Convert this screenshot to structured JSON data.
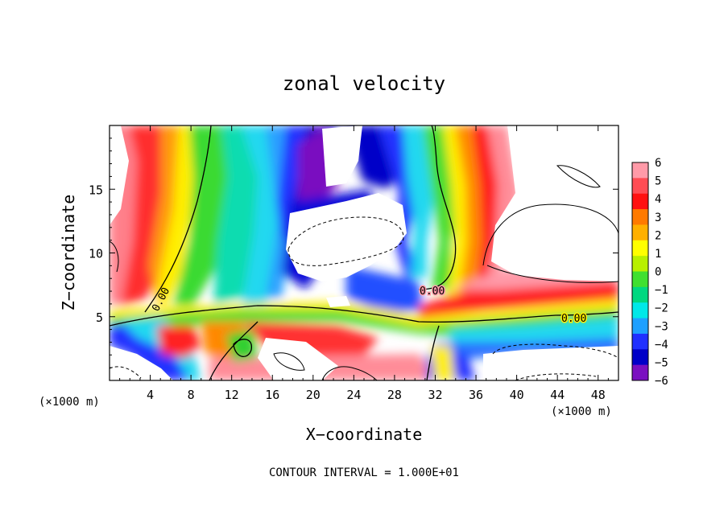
{
  "chart_data": {
    "type": "heatmap",
    "title": "zonal velocity",
    "xlabel": "X−coordinate",
    "ylabel": "Z−coordinate",
    "x_unit_left": "(×1000 m)",
    "x_unit_right": "(×1000 m)",
    "xlim": [
      0,
      50
    ],
    "ylim": [
      0,
      20
    ],
    "xticks": [
      4,
      8,
      12,
      16,
      20,
      24,
      28,
      32,
      36,
      40,
      44,
      48
    ],
    "yticks": [
      5,
      10,
      15
    ],
    "colorbar": {
      "levels": [
        6,
        5,
        4,
        3,
        2,
        1,
        0,
        -1,
        -2,
        -3,
        -4,
        -5,
        -6
      ],
      "labels": [
        "6",
        "5",
        "4",
        "3",
        "2",
        "1",
        "0",
        "−1",
        "−2",
        "−3",
        "−4",
        "−5",
        "−6"
      ],
      "colors": [
        "#ff9aa8",
        "#ff4c54",
        "#ff1010",
        "#ff7a00",
        "#ffb000",
        "#ffff00",
        "#b8f000",
        "#40e030",
        "#00d880",
        "#00e8e8",
        "#1ea0ff",
        "#2030ff",
        "#0000c8",
        "#7a10c0"
      ]
    },
    "contour_labels": [
      "0.00",
      "0.00",
      "0.00"
    ],
    "annotation": "CONTOUR INTERVAL = 1.000E+01"
  }
}
